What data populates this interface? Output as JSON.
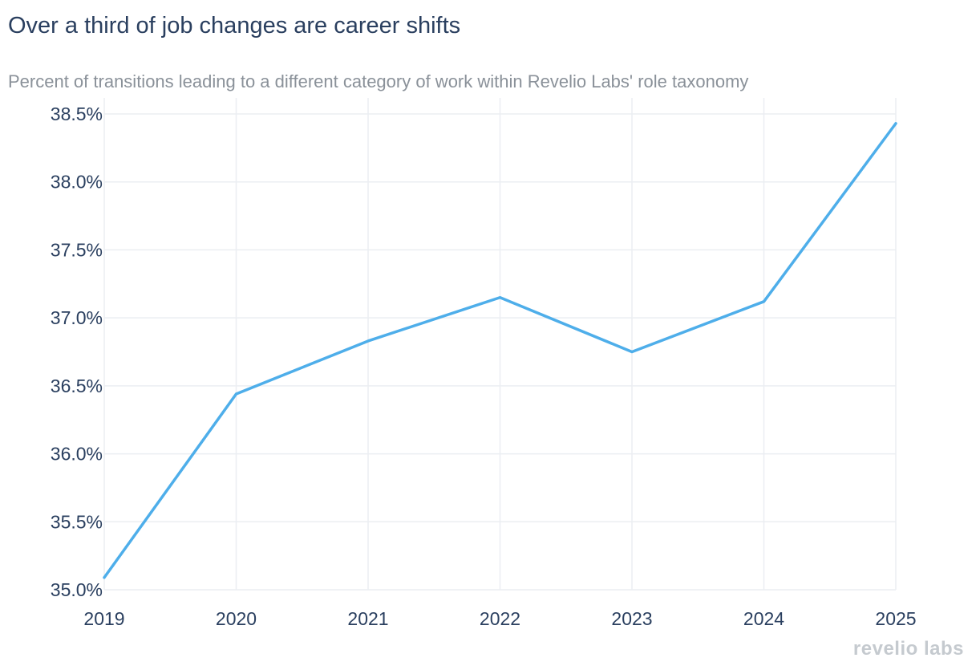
{
  "header": {
    "title": "Over a third of job changes are career shifts",
    "subtitle": "Percent of transitions leading to a different category of work within Revelio Labs' role taxonomy"
  },
  "branding": {
    "logo_text": "revelio labs"
  },
  "colors": {
    "line": "#4eaeea",
    "grid": "#ebeef2",
    "text": "#2a3f5f",
    "subtitle": "#8a9199",
    "logo": "#c5cacf"
  },
  "chart_data": {
    "type": "line",
    "x": [
      2019,
      2020,
      2021,
      2022,
      2023,
      2024,
      2025
    ],
    "series": [
      {
        "values": [
          35.09,
          36.44,
          36.83,
          37.15,
          36.75,
          37.12,
          38.43
        ]
      }
    ],
    "xticks": [
      "2019",
      "2020",
      "2021",
      "2022",
      "2023",
      "2024",
      "2025"
    ],
    "yticks": [
      35.0,
      35.5,
      36.0,
      36.5,
      37.0,
      37.5,
      38.0,
      38.5
    ],
    "ytick_labels": [
      "35.0%",
      "35.5%",
      "36.0%",
      "36.5%",
      "37.0%",
      "37.5%",
      "38.0%",
      "38.5%"
    ],
    "xlim": [
      2019,
      2025
    ],
    "ylim": [
      35.0,
      38.5
    ],
    "grid": true,
    "legend": "none"
  }
}
